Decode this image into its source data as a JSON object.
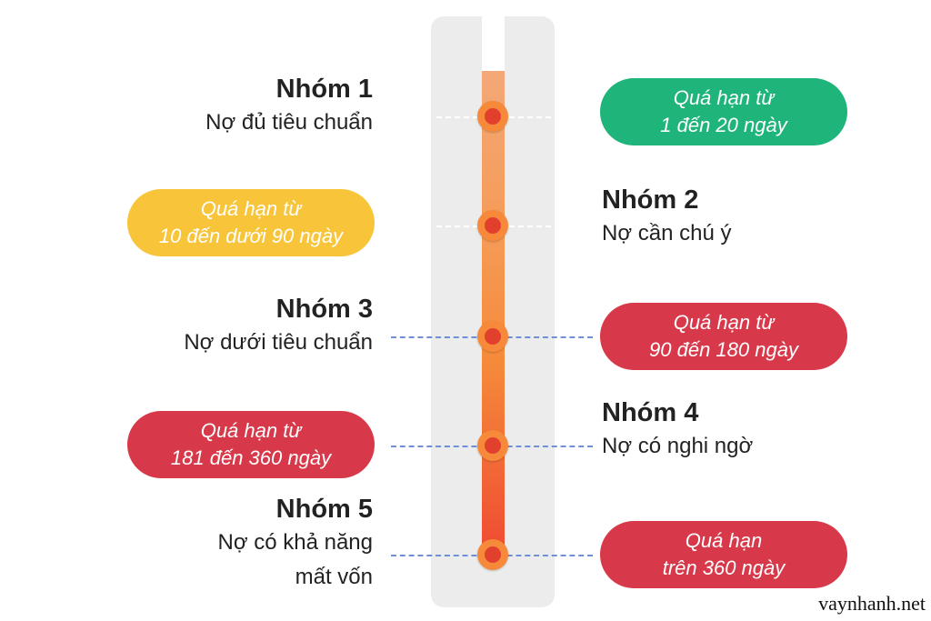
{
  "colors": {
    "green": "#1fb57a",
    "yellow": "#f8c53a",
    "red": "#d8394a",
    "accent": "#f6893a"
  },
  "groups": [
    {
      "title": "Nhóm 1",
      "desc": [
        "Nợ đủ tiêu chuẩn"
      ],
      "overdue": [
        "Quá hạn từ",
        "1 đến 20 ngày"
      ]
    },
    {
      "title": "Nhóm 2",
      "desc": [
        "Nợ cần chú ý"
      ],
      "overdue": [
        "Quá hạn từ",
        "10 đến dưới 90 ngày"
      ]
    },
    {
      "title": "Nhóm 3",
      "desc": [
        "Nợ dưới tiêu chuẩn"
      ],
      "overdue": [
        "Quá hạn từ",
        "90 đến 180 ngày"
      ]
    },
    {
      "title": "Nhóm 4",
      "desc": [
        "Nợ có nghi ngờ"
      ],
      "overdue": [
        "Quá hạn từ",
        "181 đến 360 ngày"
      ]
    },
    {
      "title": "Nhóm 5",
      "desc": [
        "Nợ có khả năng",
        "mất vốn"
      ],
      "overdue": [
        "Quá hạn",
        "trên 360 ngày"
      ]
    }
  ],
  "watermark": "vaynhanh.net"
}
